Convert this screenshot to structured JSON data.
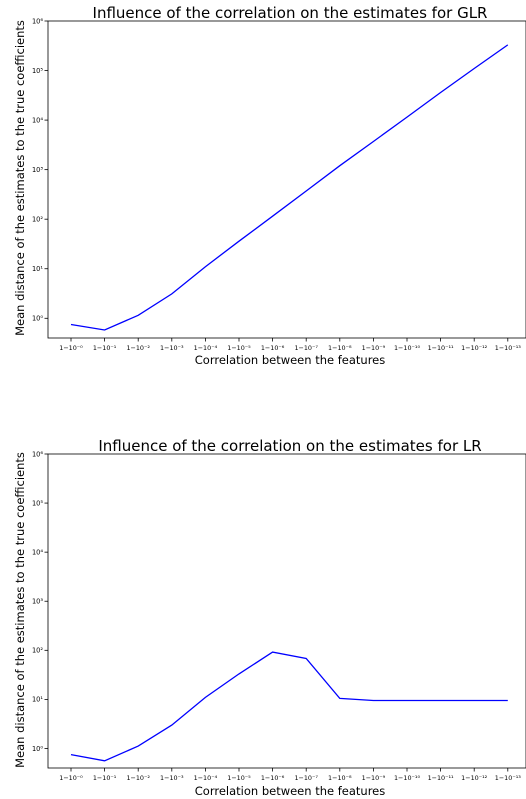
{
  "charts": [
    {
      "title": "Influence of the correlation on the estimates for GLR",
      "xlabel": "Correlation between the features",
      "ylabel": "Mean distance of the estimates to the true coefficients"
    },
    {
      "title": "Influence of the correlation on the estimates for LR",
      "xlabel": "Correlation between the features",
      "ylabel": "Mean distance of the estimates to the true coefficients"
    }
  ],
  "chart_data": [
    {
      "type": "line",
      "title": "Influence of the correlation on the estimates for GLR",
      "xlabel": "Correlation between the features",
      "ylabel": "Mean distance of the estimates to the true coefficients",
      "y_scale": "log",
      "ylim": [
        0.4,
        1000000
      ],
      "grid": false,
      "x_tick_labels": [
        "1−10⁻⁰",
        "1−10⁻¹",
        "1−10⁻²",
        "1−10⁻³",
        "1−10⁻⁴",
        "1−10⁻⁵",
        "1−10⁻⁶",
        "1−10⁻⁷",
        "1−10⁻⁸",
        "1−10⁻⁹",
        "1−10⁻¹⁰",
        "1−10⁻¹¹",
        "1−10⁻¹²",
        "1−10⁻¹³"
      ],
      "y_tick_labels": [
        "10⁰",
        "10¹",
        "10²",
        "10³",
        "10⁴",
        "10⁵",
        "10⁶"
      ],
      "y_tick_values": [
        1,
        10,
        100,
        1000,
        10000,
        100000,
        1000000
      ],
      "series": [
        {
          "color": "#0000ff",
          "x": [
            "1−10⁻⁰",
            "1−10⁻¹",
            "1−10⁻²",
            "1−10⁻³",
            "1−10⁻⁴",
            "1−10⁻⁵",
            "1−10⁻⁶",
            "1−10⁻⁷",
            "1−10⁻⁸",
            "1−10⁻⁹",
            "1−10⁻¹⁰",
            "1−10⁻¹¹",
            "1−10⁻¹²",
            "1−10⁻¹³"
          ],
          "values": [
            0.75,
            0.58,
            1.15,
            3.1,
            11,
            36,
            115,
            370,
            1200,
            3700,
            11500,
            36000,
            110000,
            330000
          ]
        }
      ]
    },
    {
      "type": "line",
      "title": "Influence of the correlation on the estimates for LR",
      "xlabel": "Correlation between the features",
      "ylabel": "Mean distance of the estimates to the true coefficients",
      "y_scale": "log",
      "ylim": [
        0.4,
        1000000
      ],
      "grid": false,
      "x_tick_labels": [
        "1−10⁻⁰",
        "1−10⁻¹",
        "1−10⁻²",
        "1−10⁻³",
        "1−10⁻⁴",
        "1−10⁻⁵",
        "1−10⁻⁶",
        "1−10⁻⁷",
        "1−10⁻⁸",
        "1−10⁻⁹",
        "1−10⁻¹⁰",
        "1−10⁻¹¹",
        "1−10⁻¹²",
        "1−10⁻¹³"
      ],
      "y_tick_labels": [
        "10⁰",
        "10¹",
        "10²",
        "10³",
        "10⁴",
        "10⁵",
        "10⁶"
      ],
      "y_tick_values": [
        1,
        10,
        100,
        1000,
        10000,
        100000,
        1000000
      ],
      "series": [
        {
          "color": "#0000ff",
          "x": [
            "1−10⁻⁰",
            "1−10⁻¹",
            "1−10⁻²",
            "1−10⁻³",
            "1−10⁻⁴",
            "1−10⁻⁵",
            "1−10⁻⁶",
            "1−10⁻⁷",
            "1−10⁻⁸",
            "1−10⁻⁹",
            "1−10⁻¹⁰",
            "1−10⁻¹¹",
            "1−10⁻¹²",
            "1−10⁻¹³"
          ],
          "values": [
            0.75,
            0.56,
            1.12,
            3.0,
            11,
            33,
            92,
            68,
            10.5,
            9.5,
            9.5,
            9.5,
            9.5,
            9.5
          ]
        }
      ]
    }
  ]
}
